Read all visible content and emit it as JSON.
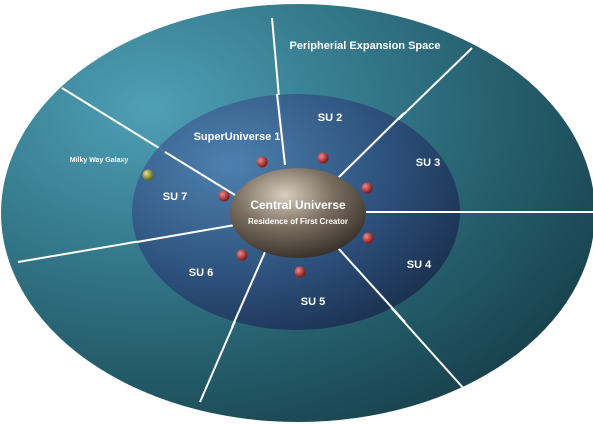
{
  "outer_label": "Peripherial Expansion Space",
  "center": {
    "title": "Central Universe",
    "subtitle": "Residence of First Creator"
  },
  "regions": [
    "SuperUniverse 1",
    "SU 2",
    "SU 3",
    "SU 4",
    "SU 5",
    "SU 6",
    "SU 7"
  ],
  "marker_label": "Milky Way Galaxy"
}
